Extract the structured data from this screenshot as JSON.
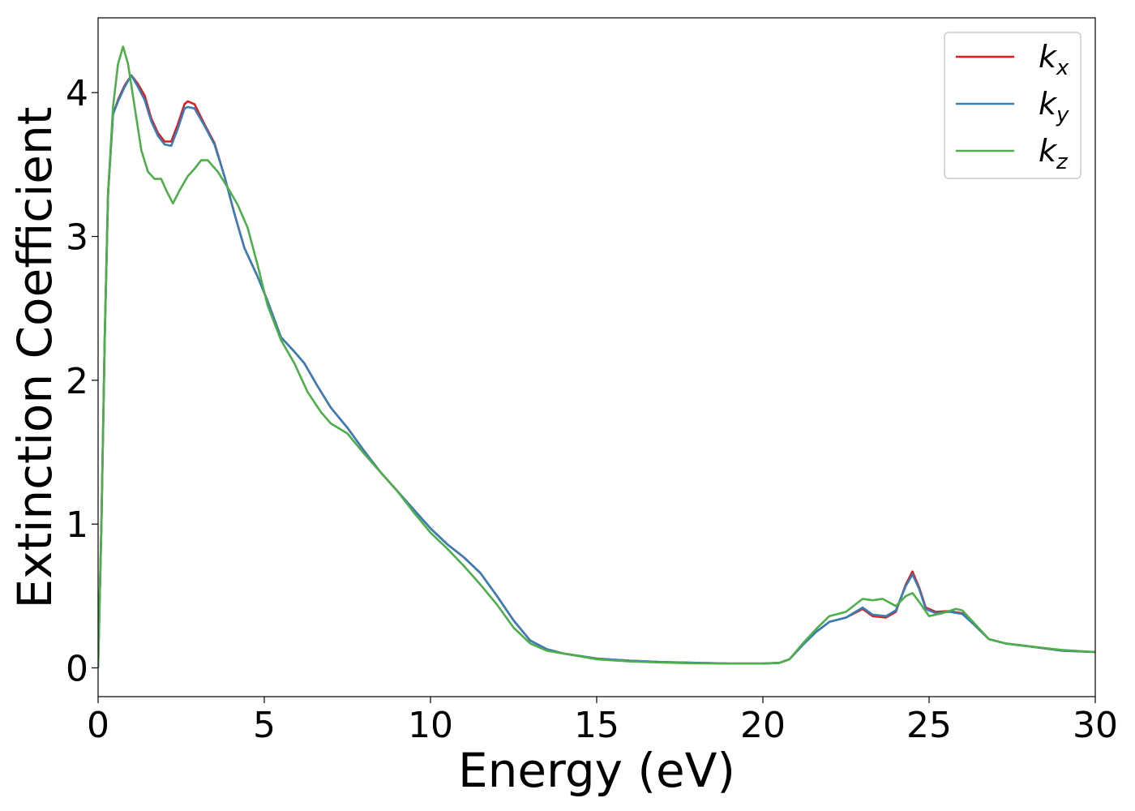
{
  "chart_data": {
    "type": "line",
    "xlabel": "Energy (eV)",
    "ylabel": "Extinction Coefficient",
    "xlim": [
      0,
      30
    ],
    "ylim": [
      -0.2,
      4.52
    ],
    "xticks": [
      0,
      5,
      10,
      15,
      20,
      25,
      30
    ],
    "yticks": [
      0,
      1,
      2,
      3,
      4
    ],
    "grid": false,
    "legend_position": "top-right",
    "series": [
      {
        "name": "k_x",
        "label_base": "k",
        "label_sub": "x",
        "color": "#e41a1c",
        "points": [
          [
            0,
            0
          ],
          [
            0.1,
            1.0
          ],
          [
            0.2,
            2.3
          ],
          [
            0.3,
            3.3
          ],
          [
            0.45,
            3.85
          ],
          [
            0.6,
            3.95
          ],
          [
            0.8,
            4.05
          ],
          [
            1.0,
            4.12
          ],
          [
            1.2,
            4.06
          ],
          [
            1.4,
            3.98
          ],
          [
            1.6,
            3.82
          ],
          [
            1.8,
            3.72
          ],
          [
            2.0,
            3.66
          ],
          [
            2.2,
            3.66
          ],
          [
            2.4,
            3.78
          ],
          [
            2.6,
            3.92
          ],
          [
            2.7,
            3.94
          ],
          [
            2.9,
            3.92
          ],
          [
            3.2,
            3.78
          ],
          [
            3.5,
            3.65
          ],
          [
            3.8,
            3.42
          ],
          [
            4.1,
            3.16
          ],
          [
            4.4,
            2.92
          ],
          [
            4.8,
            2.72
          ],
          [
            5.1,
            2.55
          ],
          [
            5.5,
            2.3
          ],
          [
            5.9,
            2.2
          ],
          [
            6.2,
            2.12
          ],
          [
            6.6,
            1.96
          ],
          [
            7.0,
            1.81
          ],
          [
            7.5,
            1.67
          ],
          [
            8.0,
            1.51
          ],
          [
            8.5,
            1.36
          ],
          [
            9.0,
            1.23
          ],
          [
            9.5,
            1.1
          ],
          [
            10.0,
            0.97
          ],
          [
            10.5,
            0.86
          ],
          [
            11.0,
            0.77
          ],
          [
            11.5,
            0.66
          ],
          [
            12.0,
            0.5
          ],
          [
            12.5,
            0.33
          ],
          [
            13.0,
            0.19
          ],
          [
            13.5,
            0.13
          ],
          [
            14.0,
            0.1
          ],
          [
            15.0,
            0.065
          ],
          [
            16.0,
            0.05
          ],
          [
            17.0,
            0.04
          ],
          [
            18.0,
            0.035
          ],
          [
            19.0,
            0.03
          ],
          [
            20.0,
            0.03
          ],
          [
            20.5,
            0.035
          ],
          [
            20.8,
            0.06
          ],
          [
            21.2,
            0.16
          ],
          [
            21.6,
            0.25
          ],
          [
            22.0,
            0.32
          ],
          [
            22.5,
            0.35
          ],
          [
            23.0,
            0.41
          ],
          [
            23.3,
            0.36
          ],
          [
            23.7,
            0.35
          ],
          [
            24.0,
            0.39
          ],
          [
            24.3,
            0.58
          ],
          [
            24.5,
            0.67
          ],
          [
            24.7,
            0.56
          ],
          [
            24.9,
            0.42
          ],
          [
            25.2,
            0.39
          ],
          [
            25.6,
            0.395
          ],
          [
            26.0,
            0.38
          ],
          [
            26.4,
            0.29
          ],
          [
            26.8,
            0.2
          ],
          [
            27.3,
            0.17
          ],
          [
            28.0,
            0.15
          ],
          [
            29.0,
            0.12
          ],
          [
            30.0,
            0.11
          ]
        ]
      },
      {
        "name": "k_y",
        "label_base": "k",
        "label_sub": "y",
        "color": "#377eb8",
        "points": [
          [
            0,
            0
          ],
          [
            0.1,
            1.0
          ],
          [
            0.2,
            2.3
          ],
          [
            0.3,
            3.3
          ],
          [
            0.45,
            3.85
          ],
          [
            0.6,
            3.94
          ],
          [
            0.8,
            4.04
          ],
          [
            1.0,
            4.12
          ],
          [
            1.2,
            4.04
          ],
          [
            1.4,
            3.95
          ],
          [
            1.6,
            3.8
          ],
          [
            1.8,
            3.7
          ],
          [
            2.0,
            3.64
          ],
          [
            2.2,
            3.63
          ],
          [
            2.4,
            3.75
          ],
          [
            2.6,
            3.89
          ],
          [
            2.7,
            3.9
          ],
          [
            2.9,
            3.89
          ],
          [
            3.2,
            3.77
          ],
          [
            3.5,
            3.64
          ],
          [
            3.8,
            3.42
          ],
          [
            4.1,
            3.16
          ],
          [
            4.4,
            2.92
          ],
          [
            4.8,
            2.72
          ],
          [
            5.1,
            2.55
          ],
          [
            5.5,
            2.3
          ],
          [
            5.9,
            2.2
          ],
          [
            6.2,
            2.12
          ],
          [
            6.6,
            1.96
          ],
          [
            7.0,
            1.81
          ],
          [
            7.5,
            1.67
          ],
          [
            8.0,
            1.51
          ],
          [
            8.5,
            1.36
          ],
          [
            9.0,
            1.23
          ],
          [
            9.5,
            1.1
          ],
          [
            10.0,
            0.97
          ],
          [
            10.5,
            0.86
          ],
          [
            11.0,
            0.77
          ],
          [
            11.5,
            0.66
          ],
          [
            12.0,
            0.5
          ],
          [
            12.5,
            0.33
          ],
          [
            13.0,
            0.19
          ],
          [
            13.5,
            0.13
          ],
          [
            14.0,
            0.1
          ],
          [
            15.0,
            0.065
          ],
          [
            16.0,
            0.05
          ],
          [
            17.0,
            0.04
          ],
          [
            18.0,
            0.035
          ],
          [
            19.0,
            0.03
          ],
          [
            20.0,
            0.03
          ],
          [
            20.5,
            0.035
          ],
          [
            20.8,
            0.06
          ],
          [
            21.2,
            0.16
          ],
          [
            21.6,
            0.25
          ],
          [
            22.0,
            0.32
          ],
          [
            22.5,
            0.35
          ],
          [
            23.0,
            0.42
          ],
          [
            23.3,
            0.37
          ],
          [
            23.7,
            0.36
          ],
          [
            24.0,
            0.4
          ],
          [
            24.3,
            0.57
          ],
          [
            24.5,
            0.65
          ],
          [
            24.7,
            0.55
          ],
          [
            24.9,
            0.41
          ],
          [
            25.2,
            0.38
          ],
          [
            25.6,
            0.39
          ],
          [
            26.0,
            0.375
          ],
          [
            26.4,
            0.29
          ],
          [
            26.8,
            0.2
          ],
          [
            27.3,
            0.17
          ],
          [
            28.0,
            0.15
          ],
          [
            29.0,
            0.12
          ],
          [
            30.0,
            0.11
          ]
        ]
      },
      {
        "name": "k_z",
        "label_base": "k",
        "label_sub": "z",
        "color": "#4daf4a",
        "points": [
          [
            0,
            0
          ],
          [
            0.1,
            1.0
          ],
          [
            0.2,
            2.3
          ],
          [
            0.3,
            3.3
          ],
          [
            0.45,
            3.9
          ],
          [
            0.6,
            4.2
          ],
          [
            0.75,
            4.32
          ],
          [
            0.9,
            4.2
          ],
          [
            1.1,
            3.9
          ],
          [
            1.3,
            3.6
          ],
          [
            1.5,
            3.45
          ],
          [
            1.7,
            3.4
          ],
          [
            1.9,
            3.4
          ],
          [
            2.05,
            3.32
          ],
          [
            2.25,
            3.23
          ],
          [
            2.45,
            3.32
          ],
          [
            2.7,
            3.42
          ],
          [
            2.9,
            3.47
          ],
          [
            3.1,
            3.53
          ],
          [
            3.3,
            3.53
          ],
          [
            3.6,
            3.45
          ],
          [
            3.9,
            3.34
          ],
          [
            4.2,
            3.22
          ],
          [
            4.5,
            3.06
          ],
          [
            4.8,
            2.8
          ],
          [
            5.1,
            2.52
          ],
          [
            5.5,
            2.28
          ],
          [
            5.9,
            2.12
          ],
          [
            6.3,
            1.92
          ],
          [
            6.7,
            1.78
          ],
          [
            7.0,
            1.7
          ],
          [
            7.5,
            1.63
          ],
          [
            8.0,
            1.49
          ],
          [
            8.5,
            1.36
          ],
          [
            9.0,
            1.23
          ],
          [
            9.5,
            1.08
          ],
          [
            10.0,
            0.94
          ],
          [
            10.5,
            0.83
          ],
          [
            11.0,
            0.71
          ],
          [
            11.5,
            0.58
          ],
          [
            12.0,
            0.44
          ],
          [
            12.5,
            0.28
          ],
          [
            13.0,
            0.17
          ],
          [
            13.5,
            0.12
          ],
          [
            14.0,
            0.1
          ],
          [
            15.0,
            0.06
          ],
          [
            16.0,
            0.045
          ],
          [
            17.0,
            0.037
          ],
          [
            18.0,
            0.032
          ],
          [
            19.0,
            0.03
          ],
          [
            20.0,
            0.03
          ],
          [
            20.5,
            0.035
          ],
          [
            20.8,
            0.06
          ],
          [
            21.2,
            0.17
          ],
          [
            21.6,
            0.27
          ],
          [
            22.0,
            0.36
          ],
          [
            22.5,
            0.39
          ],
          [
            23.0,
            0.48
          ],
          [
            23.3,
            0.47
          ],
          [
            23.6,
            0.48
          ],
          [
            24.0,
            0.43
          ],
          [
            24.3,
            0.5
          ],
          [
            24.5,
            0.52
          ],
          [
            24.7,
            0.46
          ],
          [
            25.0,
            0.36
          ],
          [
            25.4,
            0.38
          ],
          [
            25.8,
            0.41
          ],
          [
            26.0,
            0.4
          ],
          [
            26.4,
            0.3
          ],
          [
            26.8,
            0.2
          ],
          [
            27.3,
            0.17
          ],
          [
            28.0,
            0.15
          ],
          [
            29.0,
            0.125
          ],
          [
            30.0,
            0.11
          ]
        ]
      }
    ]
  }
}
